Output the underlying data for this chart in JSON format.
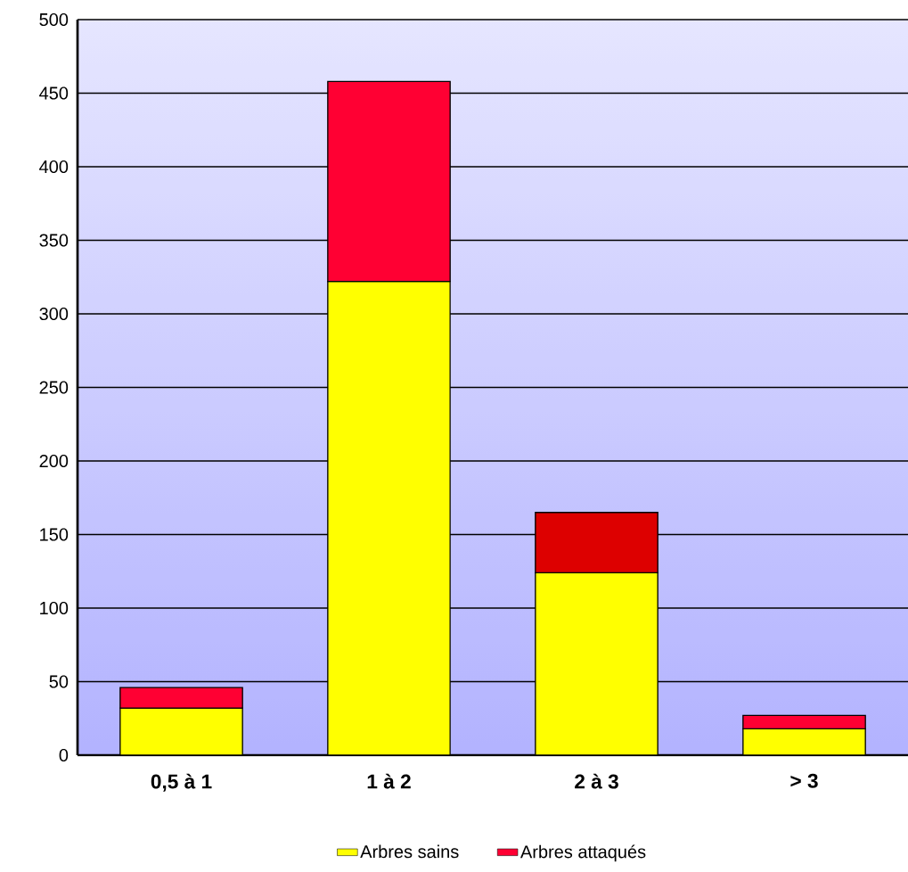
{
  "chart_data": {
    "type": "bar",
    "stacked": true,
    "categories": [
      "0,5 à 1",
      "1 à 2",
      "2 à 3",
      "> 3"
    ],
    "series": [
      {
        "name": "Arbres sains",
        "color": "#ffff00",
        "values": [
          32,
          322,
          124,
          18
        ]
      },
      {
        "name": "Arbres attaqués",
        "color": "#ff0033",
        "colors": [
          "#ff0033",
          "#ff0033",
          "#dd0000",
          "#ff0033"
        ],
        "values": [
          14,
          136,
          41,
          9
        ]
      }
    ],
    "ylim": [
      0,
      500
    ],
    "yticks": [
      0,
      50,
      100,
      150,
      200,
      250,
      300,
      350,
      400,
      450,
      500
    ],
    "grid": "y",
    "legend": "bottom"
  }
}
